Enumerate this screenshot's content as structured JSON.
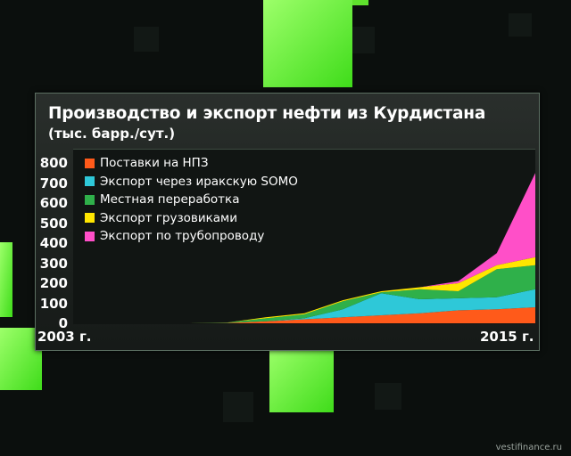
{
  "header": {
    "title": "Производство и экспорт нефти из Курдистана",
    "subtitle": "(тыс. барр./сут.)"
  },
  "axis": {
    "y_ticks": [
      "800",
      "700",
      "600",
      "500",
      "400",
      "300",
      "200",
      "100",
      "0"
    ],
    "x_start": "2003 г.",
    "x_end": "2015 г."
  },
  "watermark": "vestifinance.ru",
  "colors": {
    "background": "#0b0f0d",
    "accent_green": "#4dff1e",
    "refinery": "#ff5a1a",
    "somo": "#2ec8d8",
    "local": "#2fb04a",
    "trucks": "#ffe600",
    "pipeline": "#ff4fc8"
  },
  "chart_data": {
    "type": "area",
    "stacked": true,
    "title": "Производство и экспорт нефти из Курдистана",
    "subtitle": "(тыс. барр./сут.)",
    "x": [
      2003,
      2004,
      2005,
      2006,
      2007,
      2008,
      2009,
      2010,
      2011,
      2012,
      2013,
      2014,
      2015
    ],
    "x_tick_labels": [
      "2003 г.",
      "2015 г."
    ],
    "ylim": [
      0,
      800
    ],
    "y_ticks": [
      0,
      100,
      200,
      300,
      400,
      500,
      600,
      700,
      800
    ],
    "grid": false,
    "legend_position": "top-left",
    "series": [
      {
        "name": "Поставки на НПЗ",
        "color": "#ff5a1a",
        "values": [
          0,
          0,
          0,
          0,
          2,
          10,
          20,
          30,
          40,
          50,
          65,
          70,
          80
        ]
      },
      {
        "name": "Экспорт через иракскую SOMO",
        "color": "#2ec8d8",
        "values": [
          0,
          0,
          0,
          0,
          0,
          0,
          5,
          40,
          110,
          70,
          60,
          60,
          90
        ]
      },
      {
        "name": "Местная переработка",
        "color": "#2fb04a",
        "values": [
          0,
          0,
          0,
          0,
          2,
          15,
          20,
          40,
          5,
          50,
          35,
          140,
          120
        ]
      },
      {
        "name": "Экспорт грузовиками",
        "color": "#ffe600",
        "values": [
          0,
          0,
          0,
          0,
          0,
          5,
          5,
          5,
          5,
          10,
          40,
          20,
          40
        ]
      },
      {
        "name": "Экспорт по трубопроводу",
        "color": "#ff4fc8",
        "values": [
          0,
          0,
          0,
          0,
          0,
          0,
          0,
          0,
          0,
          0,
          10,
          60,
          420
        ]
      }
    ]
  }
}
